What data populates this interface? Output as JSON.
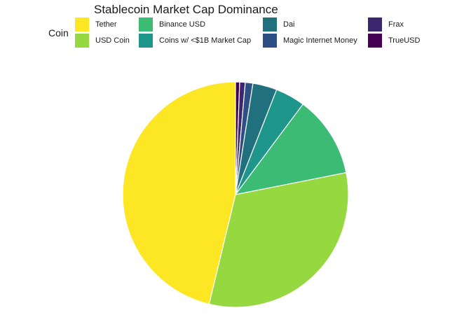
{
  "chart_data": {
    "type": "pie",
    "title": "Stablecoin Market Cap Dominance",
    "legend_title": "Coin",
    "legend_position": "top",
    "start_angle_deg": 0,
    "direction": "clockwise",
    "slice_order": [
      "TrueUSD",
      "Frax",
      "Magic Internet Money",
      "Dai",
      "Coins w/ <$1B Market Cap",
      "Binance USD",
      "USD Coin",
      "Tether"
    ],
    "series": [
      {
        "name": "Tether",
        "value": 46.7,
        "color": "#FDE725"
      },
      {
        "name": "USD Coin",
        "value": 32.2,
        "color": "#95D840"
      },
      {
        "name": "Binance USD",
        "value": 11.8,
        "color": "#3CBB75"
      },
      {
        "name": "Coins w/ <$1B Market Cap",
        "value": 4.3,
        "color": "#1F968B"
      },
      {
        "name": "Dai",
        "value": 3.5,
        "color": "#20707E"
      },
      {
        "name": "Magic Internet Money",
        "value": 1.1,
        "color": "#2D4F83"
      },
      {
        "name": "Frax",
        "value": 0.8,
        "color": "#3D2670"
      },
      {
        "name": "TrueUSD",
        "value": 0.6,
        "color": "#440154"
      }
    ]
  }
}
